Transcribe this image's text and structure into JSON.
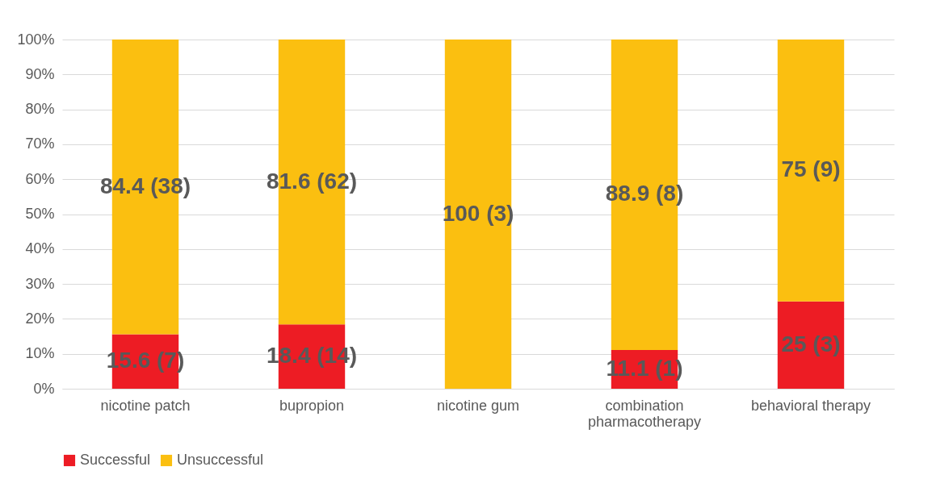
{
  "chart_data": {
    "type": "bar",
    "stacked": true,
    "categories": [
      "nicotine patch",
      "bupropion",
      "nicotine gum",
      "combination pharmacotherapy",
      "behavioral therapy"
    ],
    "series": [
      {
        "name": "Successful",
        "color": "#ed1c24",
        "values": [
          15.6,
          18.4,
          0,
          11.1,
          25
        ],
        "value_labels": [
          "15.6 (7)",
          "18.4 (14)",
          null,
          "11.1 (1)",
          "25 (3)"
        ]
      },
      {
        "name": "Unsuccessful",
        "color": "#fbbf10",
        "values": [
          84.4,
          81.6,
          100,
          88.9,
          75
        ],
        "value_labels": [
          "84.4 (38)",
          "81.6 (62)",
          "100 (3)",
          "88.9 (8)",
          "75 (9)"
        ]
      }
    ],
    "ylim": [
      0,
      100
    ],
    "yticks": [
      {
        "value": 0,
        "label": "0%"
      },
      {
        "value": 10,
        "label": "10%"
      },
      {
        "value": 20,
        "label": "20%"
      },
      {
        "value": 30,
        "label": "30%"
      },
      {
        "value": 40,
        "label": "40%"
      },
      {
        "value": 50,
        "label": "50%"
      },
      {
        "value": 60,
        "label": "60%"
      },
      {
        "value": 70,
        "label": "70%"
      },
      {
        "value": 80,
        "label": "80%"
      },
      {
        "value": 90,
        "label": "90%"
      },
      {
        "value": 100,
        "label": "100%"
      }
    ],
    "grid": "y",
    "legend": "bottom"
  }
}
